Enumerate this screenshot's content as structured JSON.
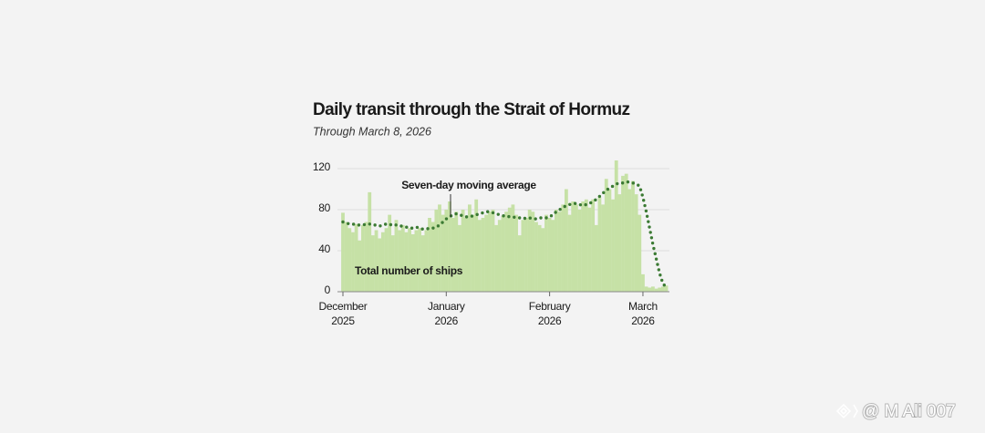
{
  "chart_data": {
    "type": "bar",
    "title": "Daily transit through the Strait of Hormuz",
    "subtitle": "Through March 8, 2026",
    "categories": [
      "December 2025",
      null,
      null,
      null,
      null,
      null,
      null,
      null,
      null,
      null,
      null,
      null,
      null,
      null,
      null,
      null,
      null,
      null,
      null,
      null,
      null,
      null,
      null,
      null,
      null,
      null,
      null,
      null,
      null,
      null,
      null,
      "January 2026",
      null,
      null,
      null,
      null,
      null,
      null,
      null,
      null,
      null,
      null,
      null,
      null,
      null,
      null,
      null,
      null,
      null,
      null,
      null,
      null,
      null,
      null,
      null,
      null,
      null,
      null,
      null,
      null,
      null,
      null,
      "February 2026",
      null,
      null,
      null,
      null,
      null,
      null,
      null,
      null,
      null,
      null,
      null,
      null,
      null,
      null,
      null,
      null,
      null,
      null,
      null,
      null,
      null,
      null,
      null,
      null,
      null,
      null,
      null,
      "March 2026",
      null,
      null,
      null,
      null,
      null,
      null,
      null
    ],
    "series": [
      {
        "name": "Total number of ships",
        "color": "#c6e1a6",
        "values": [
          77,
          68,
          62,
          58,
          66,
          50,
          65,
          68,
          97,
          55,
          60,
          52,
          58,
          62,
          75,
          55,
          70,
          60,
          65,
          58,
          62,
          56,
          60,
          62,
          55,
          60,
          72,
          68,
          80,
          85,
          75,
          80,
          88,
          72,
          78,
          65,
          80,
          72,
          85,
          75,
          90,
          70,
          72,
          75,
          78,
          80,
          65,
          70,
          74,
          78,
          82,
          85,
          75,
          55,
          70,
          72,
          80,
          78,
          68,
          65,
          62,
          75,
          72,
          70,
          80,
          78,
          85,
          100,
          75,
          88,
          85,
          80,
          88,
          90,
          82,
          90,
          65,
          92,
          85,
          110,
          100,
          90,
          128,
          95,
          113,
          115,
          100,
          108,
          95,
          75,
          17,
          5,
          4,
          5,
          3,
          4,
          5,
          6
        ]
      },
      {
        "name": "Seven-day moving average",
        "color": "#3b7a33",
        "values": [
          68,
          67,
          66,
          66,
          65,
          65,
          65,
          66,
          66,
          65,
          65,
          64,
          65,
          66,
          65,
          66,
          65,
          64,
          64,
          63,
          62,
          62,
          63,
          62,
          61,
          61,
          62,
          62,
          63,
          65,
          68,
          71,
          73,
          75,
          76,
          75,
          74,
          73,
          73,
          74,
          75,
          76,
          77,
          78,
          78,
          77,
          76,
          75,
          74,
          74,
          73,
          73,
          72,
          72,
          71,
          72,
          72,
          71,
          71,
          72,
          72,
          72,
          73,
          75,
          78,
          80,
          82,
          84,
          85,
          86,
          86,
          85,
          84,
          85,
          86,
          88,
          90,
          93,
          96,
          99,
          101,
          103,
          105,
          106,
          106,
          107,
          107,
          106,
          105,
          103,
          92,
          78,
          62,
          46,
          32,
          18,
          8,
          4
        ]
      }
    ],
    "ylim": [
      0,
      120
    ],
    "yticks": [
      0,
      40,
      80,
      120
    ],
    "grid": true
  },
  "watermark": "@ M Ali 007"
}
